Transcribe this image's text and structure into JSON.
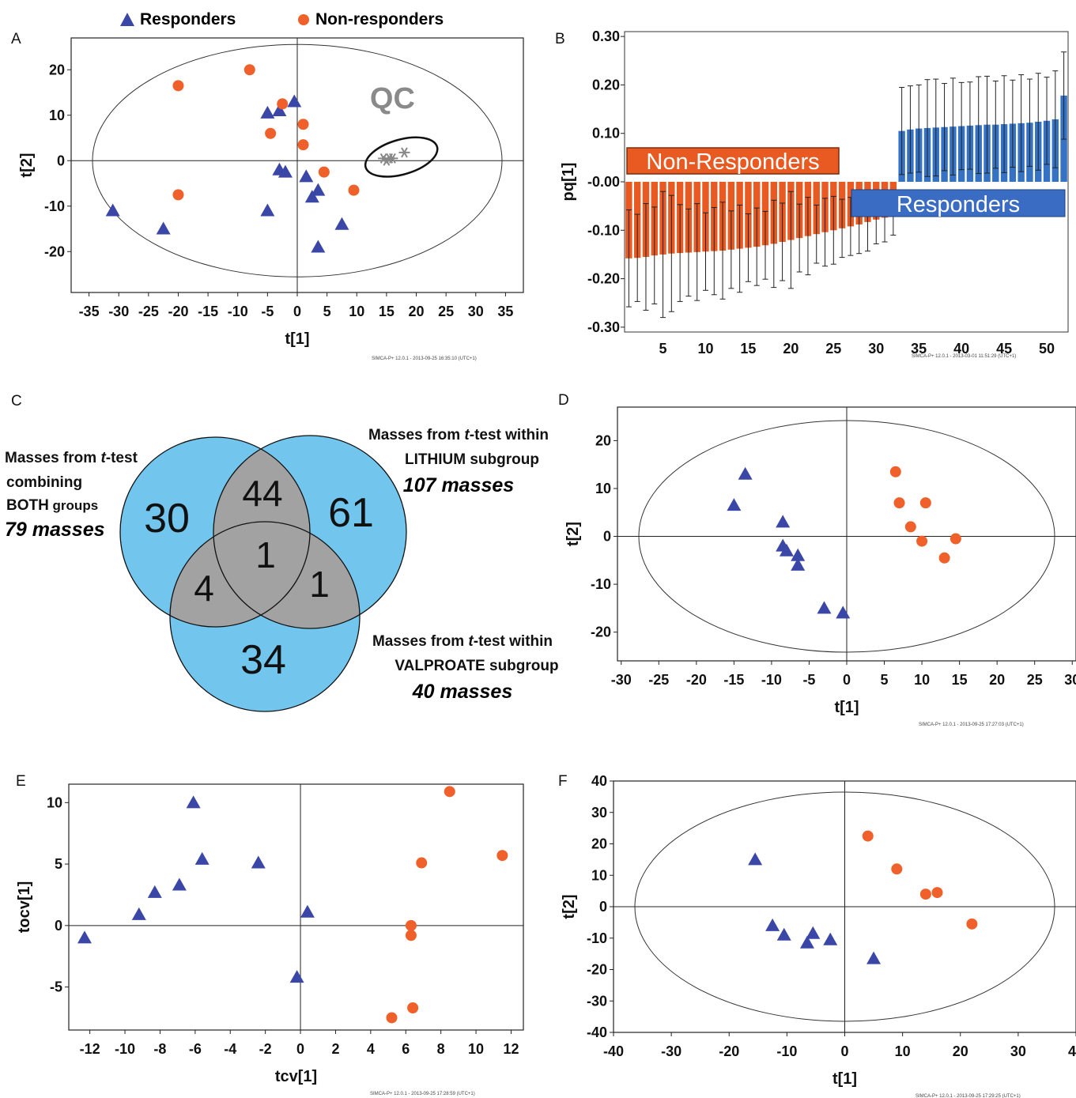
{
  "legend": {
    "responders": "Responders",
    "non_responders": "Non-responders"
  },
  "colors": {
    "responders": "#3b47a6",
    "non_responders": "#f0602a",
    "qc": "#888888",
    "bar_responders": "#3572c4",
    "bar_non_responders": "#e85a22",
    "venn_fill": "#72c6ee",
    "venn_overlap": "#a2a2a2"
  },
  "footer_stamps": {
    "A": "SIMCA-P+ 12.0.1 - 2013-09-25 16:35:10 (UTC+1)",
    "B": "SIMCA-P+ 12.0.1 - 2013-03-01 11:51:29 (UTC+1)",
    "D": "SIMCA-P+ 12.0.1 - 2013-09-25 17:27:03 (UTC+1)",
    "E": "SIMCA-P+ 12.0.1 - 2013-09-25 17:28:59 (UTC+1)",
    "F": "SIMCA-P+ 12.0.1 - 2013-09-25 17:29:25 (UTC+1)"
  },
  "chart_data": [
    {
      "panel": "A",
      "type": "scatter",
      "xlabel": "t[1]",
      "ylabel": "t[2]",
      "xlim": [
        -38,
        38
      ],
      "ylim": [
        -29,
        27
      ],
      "ellipse": true,
      "xticks": [
        -35,
        -30,
        -25,
        -20,
        -15,
        -10,
        -5,
        0,
        5,
        10,
        15,
        20,
        25,
        30,
        35
      ],
      "yticks": [
        -20,
        -10,
        0,
        10,
        20
      ],
      "annotation": "QC",
      "series": [
        {
          "name": "Responders",
          "marker": "triangle",
          "x": [
            -31,
            -22.5,
            -5,
            -5,
            -3,
            -3,
            -2,
            -0.5,
            1.5,
            2.5,
            3.5,
            3.5,
            7.5
          ],
          "y": [
            -11,
            -15,
            10.5,
            -11,
            11,
            -2,
            -2.5,
            13,
            -3.5,
            -8,
            -6.5,
            -19,
            -14
          ]
        },
        {
          "name": "Non-responders",
          "marker": "circle",
          "x": [
            -20,
            -8,
            -20,
            -2.5,
            -4.5,
            1,
            1,
            4.5,
            9.5
          ],
          "y": [
            16.5,
            20,
            -7.5,
            12.5,
            6,
            8,
            3.5,
            -2.5,
            -6.5
          ]
        },
        {
          "name": "QC",
          "marker": "star",
          "x": [
            14.5,
            15,
            15.5,
            16,
            18
          ],
          "y": [
            0.5,
            0,
            0.5,
            0.5,
            1.8
          ]
        }
      ]
    },
    {
      "panel": "B",
      "type": "bar",
      "xlabel": "",
      "ylabel": "pq[1]",
      "ylim": [
        -0.31,
        0.31
      ],
      "yticks": [
        -0.3,
        -0.2,
        -0.1,
        -0.0,
        0.1,
        0.2,
        0.3
      ],
      "yticklabels": [
        "-0.30",
        "-0.20",
        "-0.10",
        "-0.00",
        "0.10",
        "0.20",
        "0.30"
      ],
      "xticks": [
        5,
        10,
        15,
        20,
        25,
        30,
        35,
        40,
        45,
        50
      ],
      "categories": [
        1,
        2,
        3,
        4,
        5,
        6,
        7,
        8,
        9,
        10,
        11,
        12,
        13,
        14,
        15,
        16,
        17,
        18,
        19,
        20,
        21,
        22,
        23,
        24,
        25,
        26,
        27,
        28,
        29,
        30,
        31,
        32,
        33,
        34,
        35,
        36,
        37,
        38,
        39,
        40,
        41,
        42,
        43,
        44,
        45,
        46,
        47,
        48,
        49,
        50,
        51,
        52
      ],
      "values": [
        -0.158,
        -0.157,
        -0.155,
        -0.152,
        -0.15,
        -0.148,
        -0.147,
        -0.146,
        -0.145,
        -0.144,
        -0.143,
        -0.142,
        -0.14,
        -0.138,
        -0.136,
        -0.134,
        -0.131,
        -0.128,
        -0.124,
        -0.12,
        -0.116,
        -0.112,
        -0.108,
        -0.104,
        -0.1,
        -0.096,
        -0.092,
        -0.088,
        -0.083,
        -0.078,
        -0.074,
        -0.07,
        0.105,
        0.108,
        0.11,
        0.111,
        0.112,
        0.113,
        0.114,
        0.115,
        0.116,
        0.117,
        0.118,
        0.118,
        0.119,
        0.12,
        0.121,
        0.122,
        0.124,
        0.126,
        0.129,
        0.178
      ],
      "errors": [
        0.1,
        0.09,
        0.11,
        0.1,
        0.13,
        0.12,
        0.1,
        0.09,
        0.1,
        0.08,
        0.09,
        0.1,
        0.08,
        0.09,
        0.07,
        0.08,
        0.07,
        0.09,
        0.08,
        0.1,
        0.07,
        0.08,
        0.06,
        0.07,
        0.07,
        0.06,
        0.06,
        0.06,
        0.06,
        0.05,
        0.05,
        0.04,
        0.09,
        0.09,
        0.09,
        0.1,
        0.1,
        0.09,
        0.1,
        0.09,
        0.09,
        0.1,
        0.1,
        0.09,
        0.1,
        0.09,
        0.1,
        0.09,
        0.1,
        0.09,
        0.1,
        0.09
      ],
      "labels": {
        "non_responders": "Non-Responders",
        "responders": "Responders"
      }
    },
    {
      "panel": "C",
      "type": "venn",
      "sets": [
        {
          "label_lines": [
            "Masses from ",
            "t",
            "-test",
            "combining",
            "BOTH",
            " groups"
          ],
          "total": "79 masses",
          "only": "30"
        },
        {
          "label_lines": [
            "Masses from ",
            "t",
            "-test within",
            "LITHIUM",
            " subgroup"
          ],
          "total": "107 masses",
          "only": "61"
        },
        {
          "label_lines": [
            "Masses from ",
            "t",
            "-test within",
            "VALPROATE",
            " subgroup"
          ],
          "total": "40 masses",
          "only": "34"
        }
      ],
      "overlaps": {
        "both_lithium": "44",
        "both_valproate": "4",
        "lithium_valproate": "1",
        "all": "1"
      }
    },
    {
      "panel": "D",
      "type": "scatter",
      "xlabel": "t[1]",
      "ylabel": "t[2]",
      "xlim": [
        -30.5,
        30.5
      ],
      "ylim": [
        -26,
        27
      ],
      "ellipse": true,
      "xticks": [
        -30,
        -25,
        -20,
        -15,
        -10,
        -5,
        0,
        5,
        10,
        15,
        20,
        25,
        30
      ],
      "yticks": [
        -20,
        -10,
        0,
        10,
        20
      ],
      "series": [
        {
          "name": "Responders",
          "marker": "triangle",
          "x": [
            -15,
            -13.5,
            -8.5,
            -8.5,
            -8,
            -6.5,
            -6.5,
            -3,
            -0.5
          ],
          "y": [
            6.5,
            13,
            3,
            -2,
            -3,
            -4,
            -6,
            -15,
            -16
          ]
        },
        {
          "name": "Non-responders",
          "marker": "circle",
          "x": [
            6.5,
            7,
            10.5,
            8.5,
            10,
            14.5,
            13
          ],
          "y": [
            13.5,
            7,
            7,
            2,
            -1,
            -0.5,
            -4.5
          ]
        }
      ]
    },
    {
      "panel": "E",
      "type": "scatter",
      "xlabel": "tcv[1]",
      "ylabel": "tocv[1]",
      "xlim": [
        -13.2,
        12.7
      ],
      "ylim": [
        -8.5,
        11.5
      ],
      "ellipse": false,
      "xticks": [
        -12,
        -10,
        -8,
        -6,
        -4,
        -2,
        0,
        2,
        4,
        6,
        8,
        10,
        12
      ],
      "yticks": [
        -5,
        0,
        5,
        10
      ],
      "series": [
        {
          "name": "Responders",
          "marker": "triangle",
          "x": [
            -12.3,
            -9.2,
            -8.3,
            -6.9,
            -6.1,
            -5.6,
            -2.4,
            0.4,
            -0.2
          ],
          "y": [
            -1,
            0.9,
            2.7,
            3.3,
            10,
            5.4,
            5.1,
            1.1,
            -4.2
          ]
        },
        {
          "name": "Non-responders",
          "marker": "circle",
          "x": [
            8.5,
            11.5,
            6.9,
            6.3,
            6.3,
            6.4,
            5.2
          ],
          "y": [
            10.9,
            5.7,
            5.1,
            0,
            -0.8,
            -6.7,
            -7.5
          ]
        }
      ]
    },
    {
      "panel": "F",
      "type": "scatter",
      "xlabel": "t[1]",
      "ylabel": "t[2]",
      "xlim": [
        -40,
        40
      ],
      "ylim": [
        -40,
        40
      ],
      "ellipse": true,
      "xticks": [
        -40,
        -30,
        -20,
        -10,
        0,
        10,
        20,
        30,
        40
      ],
      "yticks": [
        -40,
        -30,
        -20,
        -10,
        0,
        10,
        20,
        30,
        40
      ],
      "series": [
        {
          "name": "Responders",
          "marker": "triangle",
          "x": [
            -15.5,
            -12.5,
            -10.5,
            -6.5,
            -5.5,
            -2.5,
            5
          ],
          "y": [
            15,
            -6,
            -9,
            -11.5,
            -8.5,
            -10.5,
            -16.5
          ]
        },
        {
          "name": "Non-responders",
          "marker": "circle",
          "x": [
            4,
            9,
            14,
            16,
            22
          ],
          "y": [
            22.5,
            12,
            4,
            4.5,
            -5.5
          ]
        }
      ]
    }
  ]
}
